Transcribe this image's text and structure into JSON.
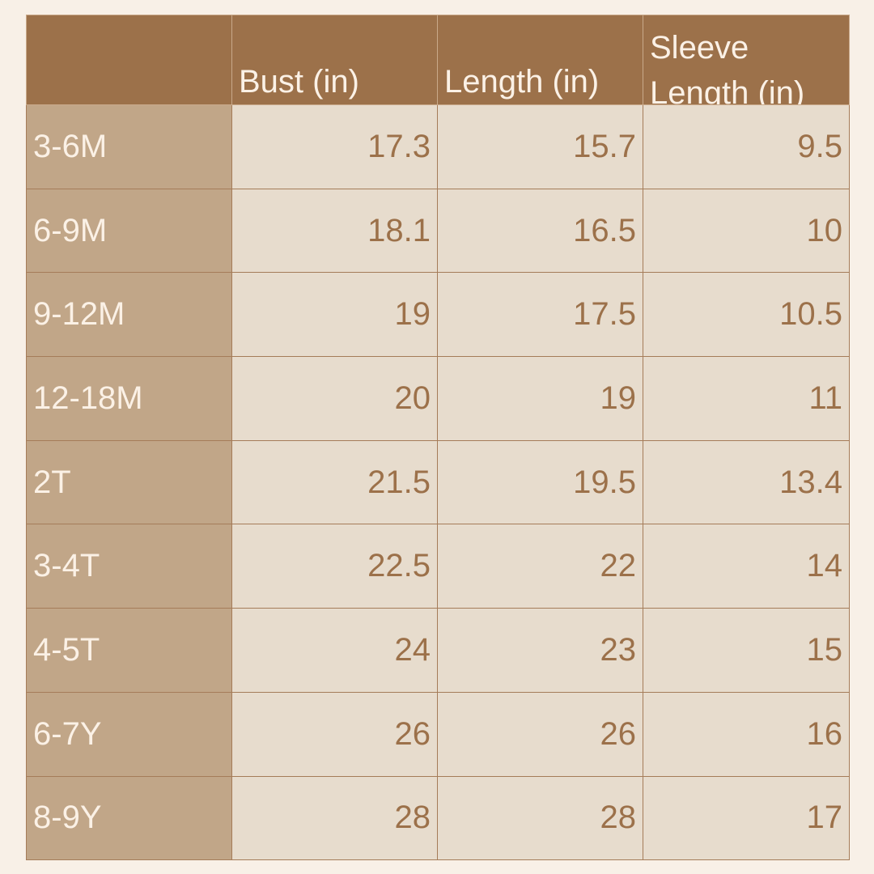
{
  "colors": {
    "background": "#f8f0e7",
    "header": "#9c714a",
    "size_column": "#c1a688",
    "cell": "#e7dccd",
    "text": "#9c714a"
  },
  "headers": [
    "",
    "Bust (in)",
    "Length (in)",
    "Sleeve Length (in)"
  ],
  "rows": [
    [
      "3-6M",
      "17.3",
      "15.7",
      "9.5"
    ],
    [
      "6-9M",
      "18.1",
      "16.5",
      "10"
    ],
    [
      "9-12M",
      "19",
      "17.5",
      "10.5"
    ],
    [
      "12-18M",
      "20",
      "19",
      "11"
    ],
    [
      "2T",
      "21.5",
      "19.5",
      "13.4"
    ],
    [
      "3-4T",
      "22.5",
      "22",
      "14"
    ],
    [
      "4-5T",
      "24",
      "23",
      "15"
    ],
    [
      "6-7Y",
      "26",
      "26",
      "16"
    ],
    [
      "8-9Y",
      "28",
      "28",
      "17"
    ]
  ]
}
